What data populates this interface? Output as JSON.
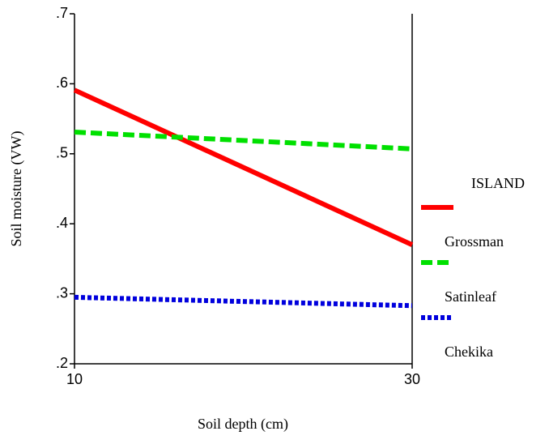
{
  "chart_data": {
    "type": "line",
    "x_label": "Soil depth (cm)",
    "y_label": "Soil moisture (VW)",
    "legend_title": "ISLAND",
    "x": [
      10,
      30
    ],
    "series": [
      {
        "name": "Grossman",
        "color": "#ff0000",
        "dash": "solid",
        "values": [
          0.591,
          0.37
        ]
      },
      {
        "name": "Satinleaf",
        "color": "#00e000",
        "dash": "dashed",
        "values": [
          0.531,
          0.507
        ]
      },
      {
        "name": "Chekika",
        "color": "#0000dd",
        "dash": "dotted",
        "values": [
          0.295,
          0.283
        ]
      }
    ],
    "xlim": [
      10,
      30
    ],
    "xticks": [
      10,
      30
    ],
    "ylim": [
      0.2,
      0.7
    ],
    "yticks": [
      {
        "value": 0.2,
        "label": ".2"
      },
      {
        "value": 0.3,
        "label": ".3"
      },
      {
        "value": 0.4,
        "label": ".4"
      },
      {
        "value": 0.5,
        "label": ".5"
      },
      {
        "value": 0.6,
        "label": ".6"
      },
      {
        "value": 0.7,
        "label": ".7"
      }
    ],
    "legend": "right"
  }
}
